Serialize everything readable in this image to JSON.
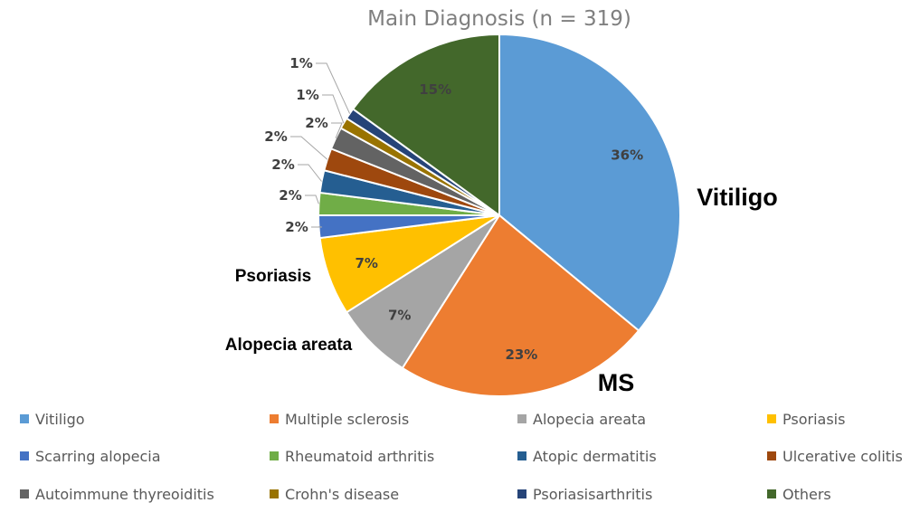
{
  "chart_data": {
    "type": "pie",
    "title": "Main Diagnosis (n = 319)",
    "start_angle_deg": 0,
    "direction": "clockwise",
    "slices": [
      {
        "name": "Vitiligo",
        "value": 36,
        "label": "36%",
        "color": "#5b9bd5"
      },
      {
        "name": "Multiple sclerosis",
        "value": 23,
        "label": "23%",
        "color": "#ed7d31"
      },
      {
        "name": "Alopecia areata",
        "value": 7,
        "label": "7%",
        "color": "#a5a5a5"
      },
      {
        "name": "Psoriasis",
        "value": 7,
        "label": "7%",
        "color": "#ffc000"
      },
      {
        "name": "Scarring alopecia",
        "value": 2,
        "label": "2%",
        "color": "#4472c4"
      },
      {
        "name": "Rheumatoid arthritis",
        "value": 2,
        "label": "2%",
        "color": "#70ad47"
      },
      {
        "name": "Atopic dermatitis",
        "value": 2,
        "label": "2%",
        "color": "#255e91"
      },
      {
        "name": "Ulcerative colitis",
        "value": 2,
        "label": "2%",
        "color": "#9e480e"
      },
      {
        "name": "Autoimmune thyreoiditis",
        "value": 2,
        "label": "2%",
        "color": "#636363"
      },
      {
        "name": "Crohn's disease",
        "value": 1,
        "label": "1%",
        "color": "#997300"
      },
      {
        "name": "Psoriasisarthritis",
        "value": 1,
        "label": "1%",
        "color": "#264478"
      },
      {
        "name": "Others",
        "value": 15,
        "label": "15%",
        "color": "#43682b"
      }
    ],
    "callouts": [
      {
        "text": "Vitiligo",
        "slice": "Vitiligo"
      },
      {
        "text": "MS",
        "slice": "Multiple sclerosis"
      },
      {
        "text": "Alopecia areata",
        "slice": "Alopecia areata"
      },
      {
        "text": "Psoriasis",
        "slice": "Psoriasis"
      }
    ],
    "legend_position": "bottom"
  }
}
